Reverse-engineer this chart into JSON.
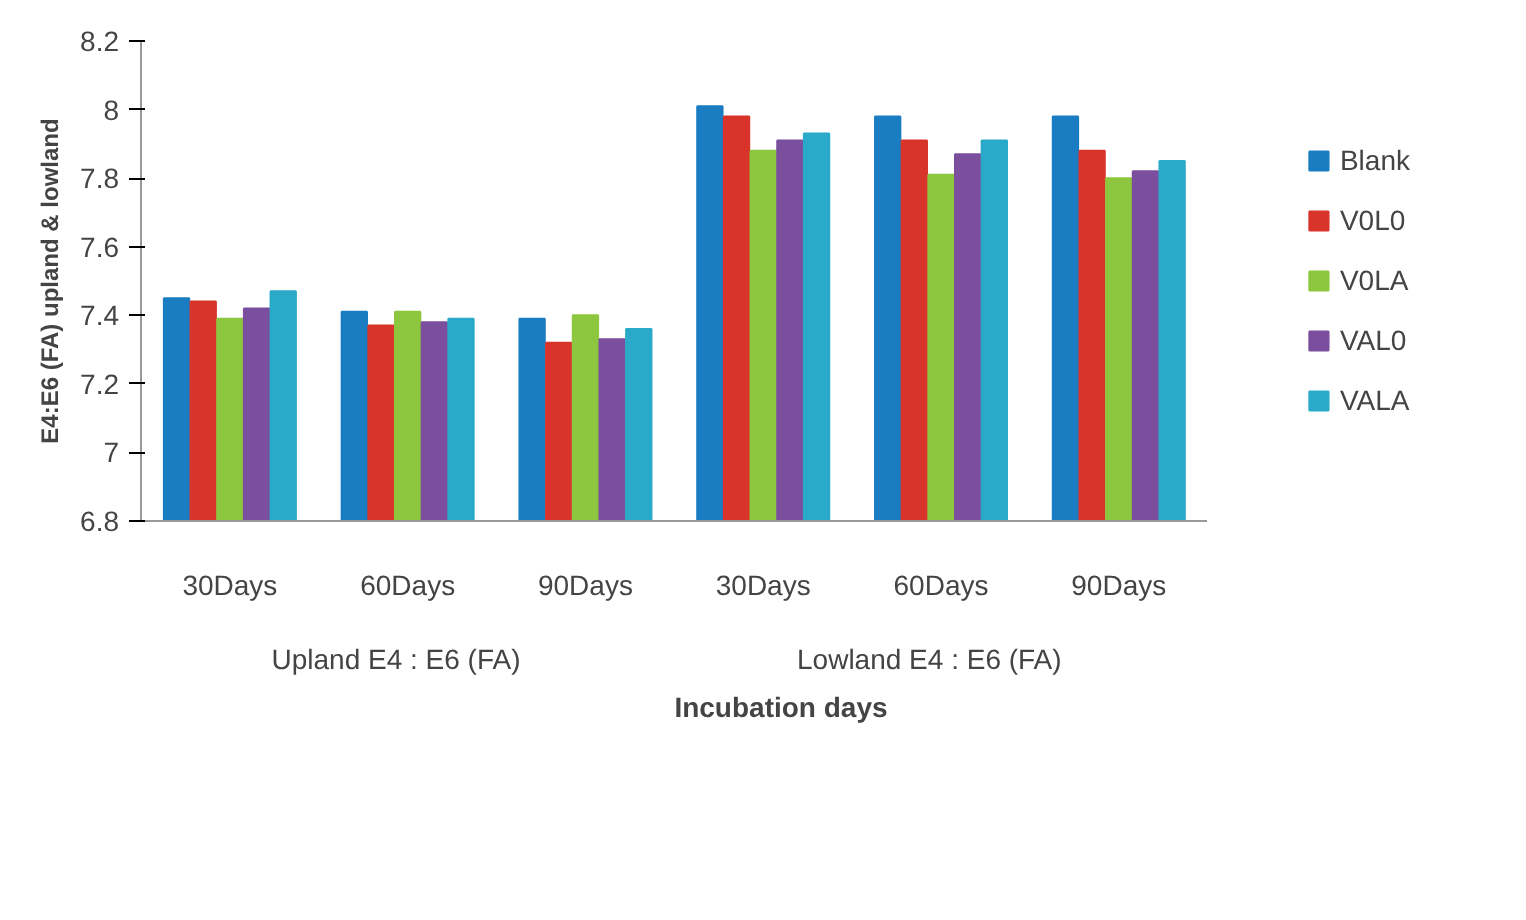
{
  "chart_data": {
    "type": "bar",
    "ylabel": "E4:E6 (FA) upland & lowland",
    "xlabel": "Incubation days",
    "categories": [
      "30Days",
      "60Days",
      "90Days",
      "30Days",
      "60Days",
      "90Days"
    ],
    "annotations": [
      "Upland E4  :  E6  (FA)",
      "Lowland E4  :  E6  (FA)"
    ],
    "series": [
      {
        "name": "Blank",
        "color": "#1a7cc1",
        "values": [
          7.45,
          7.41,
          7.39,
          8.01,
          7.98,
          7.98
        ]
      },
      {
        "name": "V0L0",
        "color": "#d9342b",
        "values": [
          7.44,
          7.37,
          7.32,
          7.98,
          7.91,
          7.88
        ]
      },
      {
        "name": "V0LA",
        "color": "#8dc63f",
        "values": [
          7.39,
          7.41,
          7.4,
          7.88,
          7.81,
          7.8
        ]
      },
      {
        "name": "VAL0",
        "color": "#7b4f9e",
        "values": [
          7.42,
          7.38,
          7.33,
          7.91,
          7.87,
          7.82
        ]
      },
      {
        "name": "VALA",
        "color": "#2aa9c9",
        "values": [
          7.47,
          7.39,
          7.36,
          7.93,
          7.91,
          7.85
        ]
      }
    ],
    "ylim": [
      6.8,
      8.2
    ],
    "yticks": [
      6.8,
      7,
      7.2,
      7.4,
      7.6,
      7.8,
      8,
      8.2
    ],
    "grid": false,
    "legend": "right"
  }
}
